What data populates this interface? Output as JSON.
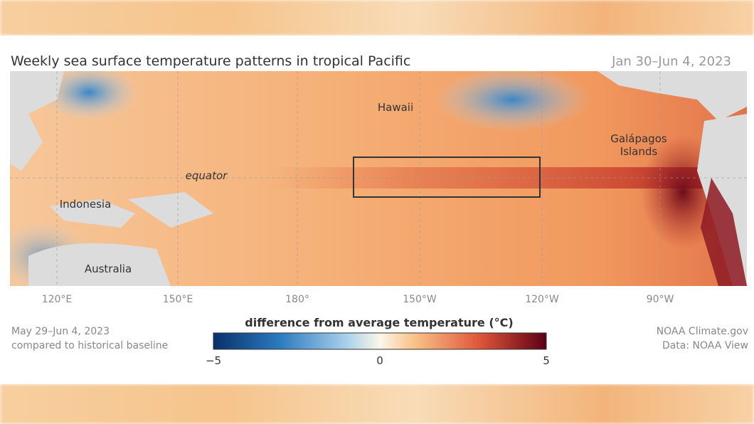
{
  "header": {
    "title": "Weekly sea surface temperature patterns in tropical Pacific",
    "date_range": "Jan 30–Jun 4, 2023"
  },
  "map": {
    "labels": [
      "Hawaii",
      "Galápagos\nIslands",
      "equator",
      "Indonesia",
      "Australia"
    ],
    "longitudes": [
      "120°E",
      "150°E",
      "180°",
      "150°W",
      "120°W",
      "90°W"
    ]
  },
  "legend": {
    "title": "difference from average temperature (°C)",
    "ticks": [
      "−5",
      "0",
      "5"
    ]
  },
  "footer": {
    "left": [
      "May 29–Jun 4, 2023",
      "compared to historical baseline"
    ],
    "right": [
      "NOAA Climate.gov",
      "Data: NOAA View"
    ]
  }
}
